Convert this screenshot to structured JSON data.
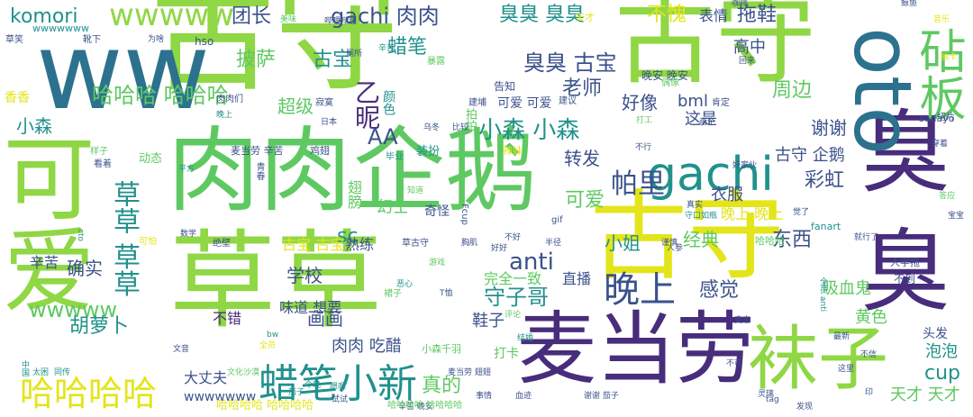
{
  "palette": {
    "yellow": "#e3e51a",
    "lime": "#8fd744",
    "green": "#5ec962",
    "teal": "#21918c",
    "tealblue": "#2c728e",
    "indigo": "#3b528b",
    "purple": "#472d7b",
    "deep": "#440154"
  },
  "words": [
    {
      "text": "古守",
      "color": "lime"
    },
    {
      "text": "古守",
      "color": "lime"
    },
    {
      "text": "肉肉",
      "color": "green"
    },
    {
      "text": "企鹅",
      "color": "green"
    },
    {
      "text": "草草",
      "color": "lime"
    },
    {
      "text": "古守",
      "color": "yellow"
    },
    {
      "text": "麦当劳",
      "color": "purple"
    },
    {
      "text": "袜子",
      "color": "lime"
    },
    {
      "text": "ww",
      "color": "tealblue"
    },
    {
      "text": "臭",
      "color": "purple"
    },
    {
      "text": "臭",
      "color": "purple"
    },
    {
      "text": "可爱",
      "color": "lime"
    },
    {
      "text": "oto",
      "color": "tealblue"
    },
    {
      "text": "gachi",
      "color": "teal"
    },
    {
      "text": "砧板",
      "color": "green"
    },
    {
      "text": "蜡笔小新",
      "color": "teal"
    },
    {
      "text": "草草 草草",
      "color": "teal"
    },
    {
      "text": "哈哈哈哈",
      "color": "yellow"
    },
    {
      "text": "晚上",
      "color": "indigo"
    },
    {
      "text": "守子哥",
      "color": "teal"
    },
    {
      "text": "帕里",
      "color": "indigo"
    },
    {
      "text": "彩虹",
      "color": "indigo"
    },
    {
      "text": "wwwww",
      "color": "lime"
    },
    {
      "text": "komori",
      "color": "teal"
    },
    {
      "text": "团长",
      "color": "indigo"
    },
    {
      "text": "gachi 肉肉",
      "color": "indigo"
    },
    {
      "text": "臭臭 臭臭",
      "color": "teal"
    },
    {
      "text": "臭臭 古宝",
      "color": "indigo"
    },
    {
      "text": "不愧",
      "color": "yellow"
    },
    {
      "text": "表情",
      "color": "indigo"
    },
    {
      "text": "拖鞋",
      "color": "indigo"
    },
    {
      "text": "蜡笔",
      "color": "teal"
    },
    {
      "text": "古宝",
      "color": "teal"
    },
    {
      "text": "披萨",
      "color": "green"
    },
    {
      "text": "高中",
      "color": "indigo"
    },
    {
      "text": "老师",
      "color": "indigo"
    },
    {
      "text": "哈哈哈 哈哈哈",
      "color": "green"
    },
    {
      "text": "小森",
      "color": "teal"
    },
    {
      "text": "超级",
      "color": "green"
    },
    {
      "text": "乙昵",
      "color": "purple"
    },
    {
      "text": "小森 小森",
      "color": "teal"
    },
    {
      "text": "好像",
      "color": "indigo"
    },
    {
      "text": "bml",
      "color": "indigo"
    },
    {
      "text": "周边",
      "color": "green"
    },
    {
      "text": "这是",
      "color": "indigo"
    },
    {
      "text": "谢谢",
      "color": "indigo"
    },
    {
      "text": "AA",
      "color": "indigo"
    },
    {
      "text": "转发",
      "color": "indigo"
    },
    {
      "text": "古守 企鹅",
      "color": "indigo"
    },
    {
      "text": "衣服",
      "color": "indigo"
    },
    {
      "text": "可爱",
      "color": "green"
    },
    {
      "text": "小姐",
      "color": "teal"
    },
    {
      "text": "anti",
      "color": "indigo"
    },
    {
      "text": "经典",
      "color": "green"
    },
    {
      "text": "东西",
      "color": "indigo"
    },
    {
      "text": "sc",
      "color": "teal"
    },
    {
      "text": "学校",
      "color": "indigo"
    },
    {
      "text": "确实",
      "color": "indigo"
    },
    {
      "text": "辛苦",
      "color": "indigo"
    },
    {
      "text": "完全一致",
      "color": "green"
    },
    {
      "text": "直播",
      "color": "indigo"
    },
    {
      "text": "感觉",
      "color": "indigo"
    },
    {
      "text": "wwwww",
      "color": "green"
    },
    {
      "text": "胡萝卜",
      "color": "teal"
    },
    {
      "text": "画画",
      "color": "indigo"
    },
    {
      "text": "不错",
      "color": "purple"
    },
    {
      "text": "鞋子",
      "color": "indigo"
    },
    {
      "text": "黄色",
      "color": "green"
    },
    {
      "text": "cup",
      "color": "teal"
    },
    {
      "text": "泡泡",
      "color": "teal"
    },
    {
      "text": "真的",
      "color": "green"
    },
    {
      "text": "肉肉 吃醋",
      "color": "indigo"
    },
    {
      "text": "大丈夫",
      "color": "indigo"
    },
    {
      "text": "天才 天才",
      "color": "green"
    },
    {
      "text": "吸血鬼",
      "color": "green"
    },
    {
      "text": "晚上 晚上",
      "color": "yellow"
    },
    {
      "text": "古宝 古宝",
      "color": "yellow"
    },
    {
      "text": "熟练",
      "color": "indigo"
    },
    {
      "text": "幻士",
      "color": "green"
    },
    {
      "text": "奇怪",
      "color": "indigo"
    },
    {
      "text": "好吃",
      "color": "indigo"
    },
    {
      "text": "哈哈哈",
      "color": "green"
    },
    {
      "text": "wwwwwww",
      "color": "indigo"
    },
    {
      "text": "哈哈哈哈 哈哈哈哈",
      "color": "yellow"
    },
    {
      "text": "打卡",
      "color": "green"
    },
    {
      "text": "头发",
      "color": "indigo"
    },
    {
      "text": "不到",
      "color": "indigo"
    },
    {
      "text": "晚安 晚安",
      "color": "indigo"
    },
    {
      "text": "可爱 可爱",
      "color": "indigo"
    },
    {
      "text": "告知",
      "color": "indigo"
    },
    {
      "text": "hso",
      "color": "indigo"
    },
    {
      "text": "香香",
      "color": "yellow"
    },
    {
      "text": "麦当劳 辛苦",
      "color": "indigo"
    },
    {
      "text": "鸡翅",
      "color": "indigo"
    },
    {
      "text": "动态",
      "color": "green"
    },
    {
      "text": "肉肉们",
      "color": "indigo"
    },
    {
      "text": "寂寞",
      "color": "indigo"
    },
    {
      "text": "装扮",
      "color": "teal"
    },
    {
      "text": "sodayo",
      "color": "indigo"
    },
    {
      "text": "fanart",
      "color": "teal"
    },
    {
      "text": "gif",
      "color": "indigo"
    },
    {
      "text": "人字拖",
      "color": "indigo"
    },
    {
      "text": "天才",
      "color": "yellow"
    },
    {
      "text": "靴下",
      "color": "indigo"
    },
    {
      "text": "美味",
      "color": "green"
    },
    {
      "text": "样子",
      "color": "green"
    },
    {
      "text": "看着",
      "color": "indigo"
    },
    {
      "text": "毕业",
      "color": "teal"
    },
    {
      "text": "数学",
      "color": "indigo"
    },
    {
      "text": "绝壁",
      "color": "indigo"
    },
    {
      "text": "可怕",
      "color": "yellow"
    },
    {
      "text": "事情",
      "color": "indigo"
    },
    {
      "text": "变态",
      "color": "indigo"
    },
    {
      "text": "最新",
      "color": "indigo"
    },
    {
      "text": "灵璃",
      "color": "indigo"
    },
    {
      "text": "发现",
      "color": "indigo"
    },
    {
      "text": "不信",
      "color": "indigo"
    },
    {
      "text": "谢谢 茄子",
      "color": "indigo"
    },
    {
      "text": "肯定",
      "color": "indigo"
    },
    {
      "text": "两个",
      "color": "indigo"
    },
    {
      "text": "切片",
      "color": "indigo"
    },
    {
      "text": "真实",
      "color": "indigo"
    },
    {
      "text": "偶像",
      "color": "green"
    },
    {
      "text": "打工",
      "color": "green"
    },
    {
      "text": "高兴",
      "color": "green"
    },
    {
      "text": "文化沙漠",
      "color": "green"
    },
    {
      "text": "一直",
      "color": "green"
    },
    {
      "text": "茄子",
      "color": "teal"
    },
    {
      "text": "同传",
      "color": "teal"
    },
    {
      "text": "太困",
      "color": "teal"
    },
    {
      "text": "文音",
      "color": "indigo"
    },
    {
      "text": "麦当劳 翅翅",
      "color": "indigo"
    },
    {
      "text": "辛苦 晚安",
      "color": "indigo"
    },
    {
      "text": "血迹",
      "color": "indigo"
    },
    {
      "text": "试试",
      "color": "indigo"
    },
    {
      "text": "好好",
      "color": "indigo"
    },
    {
      "text": "半径",
      "color": "indigo"
    },
    {
      "text": "草古守",
      "color": "indigo"
    },
    {
      "text": "胸肌",
      "color": "indigo"
    },
    {
      "text": "谨慎",
      "color": "indigo"
    },
    {
      "text": "tag",
      "color": "indigo"
    },
    {
      "text": "建议",
      "color": "indigo"
    },
    {
      "text": "仿佛",
      "color": "indigo"
    },
    {
      "text": "知道",
      "color": "green"
    },
    {
      "text": "不行",
      "color": "indigo"
    },
    {
      "text": "人参",
      "color": "indigo"
    },
    {
      "text": "答应",
      "color": "green"
    },
    {
      "text": "bw",
      "color": "teal"
    },
    {
      "text": "日本",
      "color": "indigo"
    },
    {
      "text": "辣妹",
      "color": "yellow"
    },
    {
      "text": "草笑",
      "color": "indigo"
    },
    {
      "text": "翅膀",
      "color": "green"
    },
    {
      "text": "味道 想要",
      "color": "indigo"
    },
    {
      "text": "颜色",
      "color": "teal"
    },
    {
      "text": "暴露",
      "color": "green"
    },
    {
      "text": "拍拍",
      "color": "green"
    },
    {
      "text": "建埔",
      "color": "indigo"
    },
    {
      "text": "守口如瓶",
      "color": "teal"
    },
    {
      "text": "Fcup",
      "color": "indigo"
    },
    {
      "text": "T恤",
      "color": "indigo"
    },
    {
      "text": "裙子",
      "color": "green"
    },
    {
      "text": "全员 anti",
      "color": "teal"
    },
    {
      "text": "厕所",
      "color": "indigo"
    },
    {
      "text": "游戏",
      "color": "green"
    },
    {
      "text": "为啥",
      "color": "indigo"
    },
    {
      "text": "咖啡",
      "color": "indigo"
    },
    {
      "text": "觉了",
      "color": "indigo"
    },
    {
      "text": "就行了",
      "color": "indigo"
    },
    {
      "text": "回来",
      "color": "indigo"
    },
    {
      "text": "青春",
      "color": "indigo"
    },
    {
      "text": "鲸鱼",
      "color": "indigo"
    },
    {
      "text": "小森千羽",
      "color": "green"
    },
    {
      "text": "哈哈哈哈 哈哈哈哈",
      "color": "green"
    },
    {
      "text": "wwwwwww",
      "color": "teal"
    },
    {
      "text": "乌冬",
      "color": "indigo"
    },
    {
      "text": "比较",
      "color": "indigo"
    },
    {
      "text": "画个",
      "color": "indigo"
    },
    {
      "text": "平方",
      "color": "teal"
    },
    {
      "text": "cto",
      "color": "teal"
    },
    {
      "text": "抽卡",
      "color": "yellow"
    },
    {
      "text": "音乐",
      "color": "yellow"
    },
    {
      "text": "好家伙",
      "color": "indigo"
    },
    {
      "text": "穿着",
      "color": "indigo"
    },
    {
      "text": "评论",
      "color": "green"
    },
    {
      "text": "结婚",
      "color": "teal"
    },
    {
      "text": "不可",
      "color": "indigo"
    },
    {
      "text": "中国",
      "color": "teal"
    },
    {
      "text": "全员",
      "color": "yellow"
    },
    {
      "text": "印",
      "color": "indigo"
    },
    {
      "text": "这里",
      "color": "indigo"
    },
    {
      "text": "今晚",
      "color": "teal"
    },
    {
      "text": "嗯嗯",
      "color": "teal"
    },
    {
      "text": "宝宝",
      "color": "indigo"
    },
    {
      "text": "晚上",
      "color": "teal"
    },
    {
      "text": "不好",
      "color": "indigo"
    },
    {
      "text": "辛苦",
      "color": "teal"
    },
    {
      "text": "恶心",
      "color": "teal"
    },
    {
      "text": "哔哩哔哩",
      "color": "indigo"
    }
  ]
}
